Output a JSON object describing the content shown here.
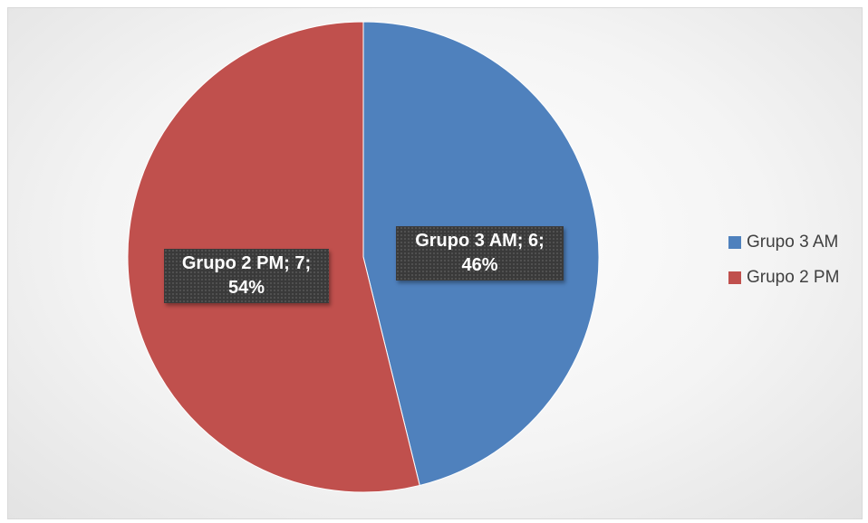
{
  "chart_data": {
    "type": "pie",
    "slices": [
      {
        "name": "Grupo 3 AM",
        "value": 6,
        "percent": "46%",
        "label_line1": "Grupo 3 AM; 6;",
        "label_line2": "46%",
        "color": "#4f81bd"
      },
      {
        "name": "Grupo 2 PM",
        "value": 7,
        "percent": "54%",
        "label_line1": "Grupo 2 PM; 7;",
        "label_line2": "54%",
        "color": "#c0504d"
      }
    ],
    "legend_position": "right"
  }
}
